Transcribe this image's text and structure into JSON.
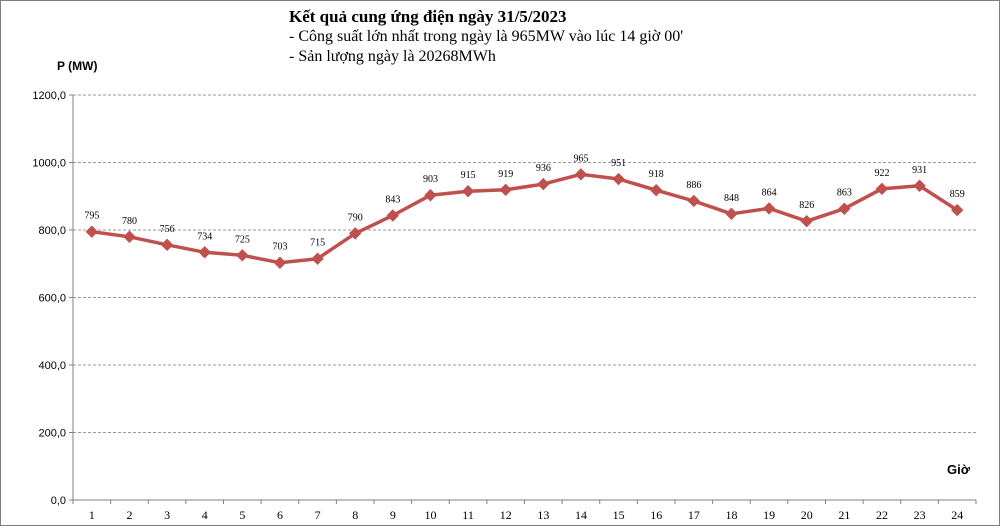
{
  "chart_data": {
    "type": "line",
    "title": "Kết quả cung ứng điện ngày 31/5/2023",
    "subtitle_lines": [
      "- Công suất lớn nhất trong ngày là 965MW vào lúc 14 giờ 00'",
      "- Sản lượng ngày là 20268MWh"
    ],
    "ylabel": "P (MW)",
    "xlabel": "Giờ",
    "ylim": [
      0,
      1200
    ],
    "yticks": [
      "0,0",
      "200,0",
      "400,0",
      "600,0",
      "800,0",
      "1000,0",
      "1200,0"
    ],
    "categories": [
      "1",
      "2",
      "3",
      "4",
      "5",
      "6",
      "7",
      "8",
      "9",
      "10",
      "11",
      "12",
      "13",
      "14",
      "15",
      "16",
      "17",
      "18",
      "19",
      "20",
      "21",
      "22",
      "23",
      "24"
    ],
    "values": [
      795,
      780,
      756,
      734,
      725,
      703,
      715,
      790,
      843,
      903,
      915,
      919,
      936,
      965,
      951,
      918,
      886,
      848,
      864,
      826,
      863,
      922,
      931,
      859
    ],
    "grid": true,
    "legend": "none",
    "series_color": "#c0504d"
  }
}
